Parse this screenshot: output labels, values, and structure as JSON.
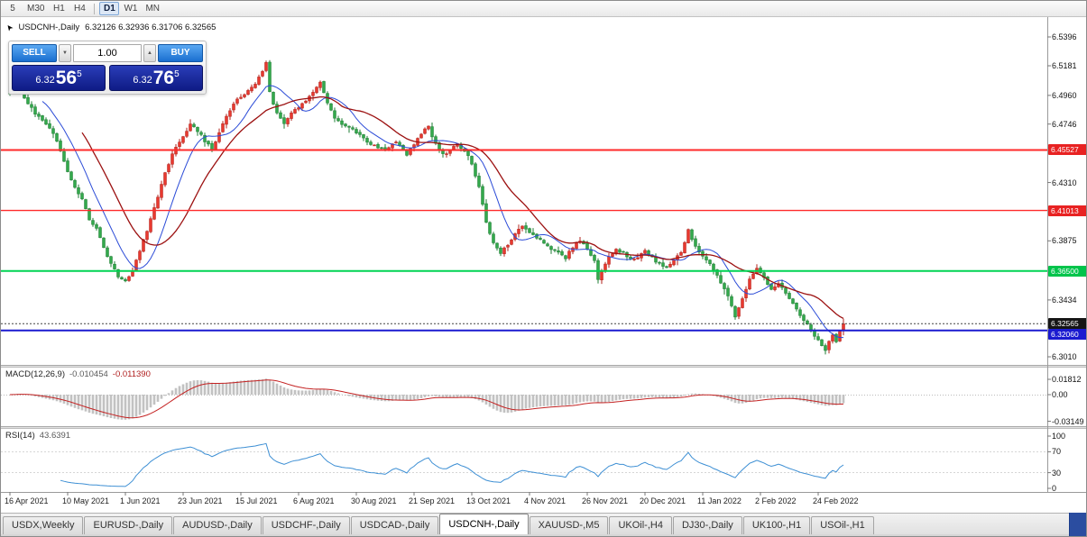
{
  "icons": {
    "vol_down": "▼",
    "vol_up": "▲",
    "cursor": "➤"
  },
  "toolbar": {
    "groups": [
      [
        "5",
        "M30",
        "H1",
        "H4"
      ],
      [
        "D1",
        "W1",
        "MN"
      ]
    ],
    "active": "D1"
  },
  "chart": {
    "symbol_period": "USDCNH-,Daily",
    "ohlc_text": "6.32126 6.32936 6.31706 6.32565"
  },
  "trade_panel": {
    "sell_label": "SELL",
    "buy_label": "BUY",
    "volume": "1.00",
    "sell_price": {
      "prefix": "6.32",
      "big": "56",
      "sup": "5"
    },
    "buy_price": {
      "prefix": "6.32",
      "big": "76",
      "sup": "5"
    }
  },
  "price_axis": {
    "ticks": [
      {
        "label": "6.5396",
        "price": 6.5396
      },
      {
        "label": "6.5181",
        "price": 6.5181
      },
      {
        "label": "6.4960",
        "price": 6.496
      },
      {
        "label": "6.4746",
        "price": 6.4746
      },
      {
        "label": "6.4310",
        "price": 6.431
      },
      {
        "label": "6.3875",
        "price": 6.3875
      },
      {
        "label": "6.3434",
        "price": 6.3434
      },
      {
        "label": "6.3010",
        "price": 6.301
      }
    ],
    "levels": [
      {
        "label": "6.45527",
        "price": 6.45527,
        "color": "#e82222",
        "line": "#ff2a2a",
        "width": 2
      },
      {
        "label": "6.41013",
        "price": 6.41013,
        "color": "#e82222",
        "line": "#ff2a2a",
        "width": 1.4
      },
      {
        "label": "6.36500",
        "price": 6.365,
        "color": "#00c44b",
        "line": "#00d453",
        "width": 2
      },
      {
        "label": "6.32060",
        "price": 6.3206,
        "color": "#1a1ad0",
        "line": "#1a1ad0",
        "width": 2
      }
    ],
    "bid_tag": {
      "label": "6.32565",
      "price": 6.32565,
      "color": "#151515"
    }
  },
  "macd": {
    "name": "MACD(12,26,9)",
    "value_main": "-0.010454",
    "value_signal": "-0.011390",
    "axis": [
      {
        "label": "0.01812",
        "v": 0.01812
      },
      {
        "label": "0.00",
        "v": 0
      },
      {
        "label": "-0.03149",
        "v": -0.03149
      }
    ],
    "colors": {
      "hist": "#c2c2c2",
      "signal": "#c42222"
    }
  },
  "rsi": {
    "name": "RSI(14)",
    "value": "43.6391",
    "axis": [
      {
        "label": "100",
        "v": 100
      },
      {
        "label": "70",
        "v": 70
      },
      {
        "label": "30",
        "v": 30
      },
      {
        "label": "0",
        "v": 0
      }
    ],
    "levels": [
      70,
      30
    ],
    "color": "#3d8fd4"
  },
  "date_axis": {
    "labels": [
      "16 Apr 2021",
      "10 May 2021",
      "1 Jun 2021",
      "23 Jun 2021",
      "15 Jul 2021",
      "6 Aug 2021",
      "30 Aug 2021",
      "21 Sep 2021",
      "13 Oct 2021",
      "4 Nov 2021",
      "26 Nov 2021",
      "20 Dec 2021",
      "11 Jan 2022",
      "2 Feb 2022",
      "24 Feb 2022"
    ]
  },
  "tabs": [
    {
      "label": "USDX,Weekly",
      "active": false
    },
    {
      "label": "EURUSD-,Daily",
      "active": false
    },
    {
      "label": "AUDUSD-,Daily",
      "active": false
    },
    {
      "label": "USDCHF-,Daily",
      "active": false
    },
    {
      "label": "USDCAD-,Daily",
      "active": false
    },
    {
      "label": "USDCNH-,Daily",
      "active": true
    },
    {
      "label": "XAUUSD-,M5",
      "active": false
    },
    {
      "label": "UKOil-,H4",
      "active": false
    },
    {
      "label": "DJ30-,Daily",
      "active": false
    },
    {
      "label": "UK100-,H1",
      "active": false
    },
    {
      "label": "USOil-,H1",
      "active": false
    }
  ],
  "chart_data": {
    "type": "candlestick",
    "symbol": "USDCNH-",
    "timeframe": "Daily",
    "current_ohlc": {
      "open": 6.32126,
      "high": 6.32936,
      "low": 6.31706,
      "close": 6.32565
    },
    "ylim": [
      6.295,
      6.554
    ],
    "candle_count": 232,
    "close_anchors": [
      [
        0,
        6.498
      ],
      [
        2,
        6.506
      ],
      [
        4,
        6.494
      ],
      [
        6,
        6.486
      ],
      [
        9,
        6.477
      ],
      [
        12,
        6.468
      ],
      [
        14,
        6.455
      ],
      [
        16,
        6.44
      ],
      [
        18,
        6.428
      ],
      [
        20,
        6.418
      ],
      [
        22,
        6.404
      ],
      [
        24,
        6.396
      ],
      [
        26,
        6.382
      ],
      [
        28,
        6.371
      ],
      [
        30,
        6.36
      ],
      [
        32,
        6.357
      ],
      [
        34,
        6.366
      ],
      [
        36,
        6.38
      ],
      [
        38,
        6.395
      ],
      [
        40,
        6.412
      ],
      [
        42,
        6.43
      ],
      [
        44,
        6.445
      ],
      [
        46,
        6.458
      ],
      [
        48,
        6.466
      ],
      [
        50,
        6.474
      ],
      [
        52,
        6.47
      ],
      [
        54,
        6.462
      ],
      [
        56,
        6.456
      ],
      [
        58,
        6.468
      ],
      [
        60,
        6.48
      ],
      [
        62,
        6.49
      ],
      [
        64,
        6.495
      ],
      [
        66,
        6.5
      ],
      [
        68,
        6.505
      ],
      [
        70,
        6.513
      ],
      [
        71,
        6.52
      ],
      [
        72,
        6.498
      ],
      [
        74,
        6.482
      ],
      [
        76,
        6.475
      ],
      [
        78,
        6.482
      ],
      [
        80,
        6.487
      ],
      [
        82,
        6.492
      ],
      [
        84,
        6.499
      ],
      [
        86,
        6.506
      ],
      [
        88,
        6.49
      ],
      [
        90,
        6.48
      ],
      [
        92,
        6.475
      ],
      [
        95,
        6.47
      ],
      [
        98,
        6.464
      ],
      [
        101,
        6.458
      ],
      [
        104,
        6.455
      ],
      [
        107,
        6.461
      ],
      [
        110,
        6.452
      ],
      [
        112,
        6.46
      ],
      [
        114,
        6.468
      ],
      [
        116,
        6.472
      ],
      [
        118,
        6.46
      ],
      [
        120,
        6.452
      ],
      [
        122,
        6.455
      ],
      [
        124,
        6.46
      ],
      [
        126,
        6.455
      ],
      [
        128,
        6.445
      ],
      [
        130,
        6.428
      ],
      [
        132,
        6.402
      ],
      [
        134,
        6.386
      ],
      [
        136,
        6.379
      ],
      [
        138,
        6.385
      ],
      [
        140,
        6.393
      ],
      [
        142,
        6.399
      ],
      [
        144,
        6.394
      ],
      [
        146,
        6.39
      ],
      [
        148,
        6.386
      ],
      [
        150,
        6.381
      ],
      [
        152,
        6.378
      ],
      [
        154,
        6.375
      ],
      [
        156,
        6.383
      ],
      [
        158,
        6.388
      ],
      [
        160,
        6.382
      ],
      [
        162,
        6.372
      ],
      [
        163,
        6.358
      ],
      [
        164,
        6.366
      ],
      [
        166,
        6.375
      ],
      [
        168,
        6.381
      ],
      [
        170,
        6.378
      ],
      [
        172,
        6.373
      ],
      [
        174,
        6.376
      ],
      [
        176,
        6.38
      ],
      [
        178,
        6.375
      ],
      [
        180,
        6.37
      ],
      [
        182,
        6.368
      ],
      [
        184,
        6.373
      ],
      [
        186,
        6.378
      ],
      [
        188,
        6.395
      ],
      [
        190,
        6.384
      ],
      [
        192,
        6.376
      ],
      [
        194,
        6.37
      ],
      [
        196,
        6.362
      ],
      [
        198,
        6.352
      ],
      [
        200,
        6.34
      ],
      [
        201,
        6.33
      ],
      [
        203,
        6.345
      ],
      [
        205,
        6.358
      ],
      [
        207,
        6.366
      ],
      [
        209,
        6.36
      ],
      [
        211,
        6.352
      ],
      [
        213,
        6.356
      ],
      [
        215,
        6.348
      ],
      [
        217,
        6.34
      ],
      [
        219,
        6.332
      ],
      [
        221,
        6.325
      ],
      [
        223,
        6.316
      ],
      [
        225,
        6.31
      ],
      [
        226,
        6.306
      ],
      [
        227,
        6.312
      ],
      [
        228,
        6.318
      ],
      [
        229,
        6.313
      ],
      [
        230,
        6.32
      ],
      [
        231,
        6.32565
      ]
    ],
    "colors": {
      "up": "#e8392f",
      "up_stroke": "#b0231c",
      "down": "#33a94c",
      "down_stroke": "#1e7d33",
      "ma_fast": "#2b4bd7",
      "ma_slow": "#9c1111"
    },
    "ma_periods": {
      "fast": 10,
      "slow": 21
    },
    "indicators": {
      "macd": [
        12,
        26,
        9
      ],
      "rsi": 14
    }
  }
}
